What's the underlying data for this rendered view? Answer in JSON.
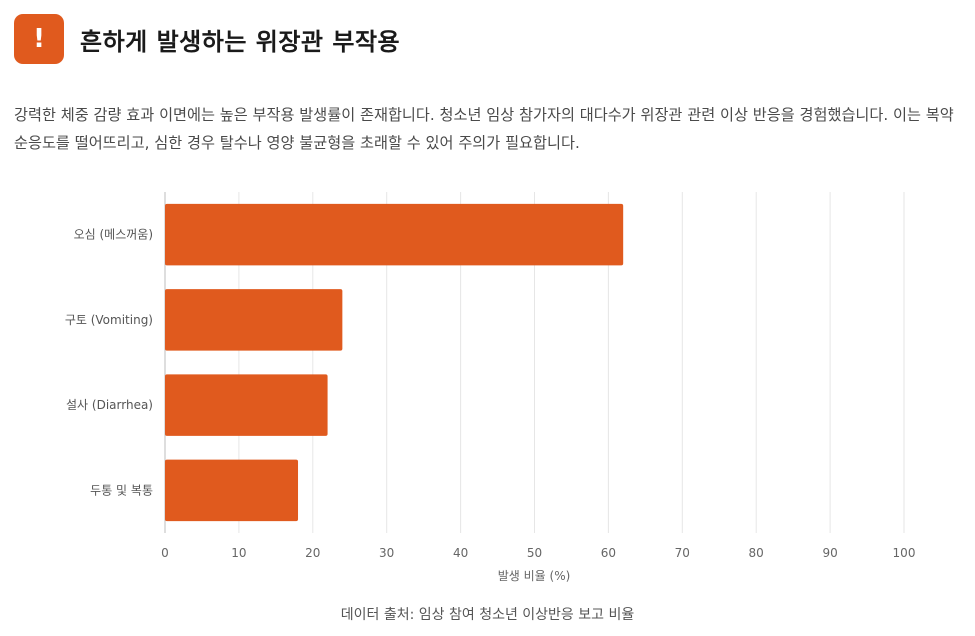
{
  "header": {
    "icon": "exclamation-icon",
    "icon_glyph": "!",
    "accent_color": "#E05A1E",
    "title": "흔하게 발생하는 위장관 부작용"
  },
  "description": "강력한 체중 감량 효과 이면에는 높은 부작용 발생률이 존재합니다. 청소년 임상 참가자의 대다수가 위장관 관련 이상 반응을 경험했습니다. 이는 복약 순응도를 떨어뜨리고, 심한 경우 탈수나 영양 불균형을 초래할 수 있어 주의가 필요합니다.",
  "chart_data": {
    "type": "bar",
    "orientation": "horizontal",
    "categories": [
      "오심 (메스꺼움)",
      "구토 (Vomiting)",
      "설사 (Diarrhea)",
      "두통 및 복통"
    ],
    "values": [
      62,
      24,
      22,
      18
    ],
    "xlabel": "발생 비율 (%)",
    "ylabel": "",
    "xlim": [
      0,
      100
    ],
    "xticks": [
      0,
      10,
      20,
      30,
      40,
      50,
      60,
      70,
      80,
      90,
      100
    ],
    "grid": true,
    "bar_color": "#E05A1E"
  },
  "footer": {
    "source_note": "데이터 출처: 임상 참여 청소년 이상반응 보고 비율"
  }
}
